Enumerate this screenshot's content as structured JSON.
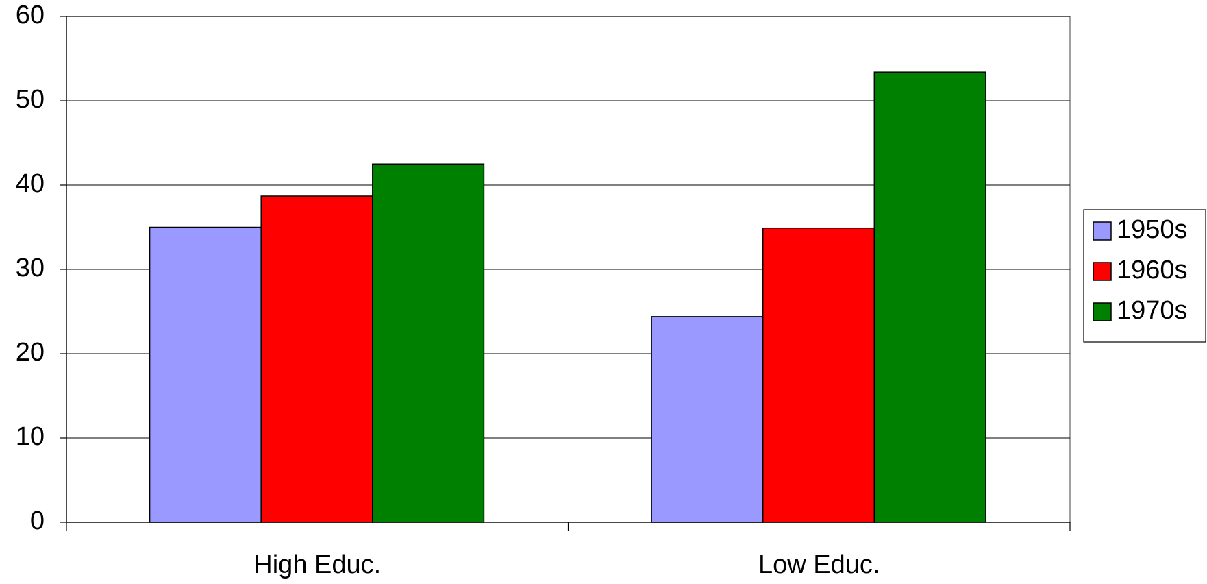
{
  "chart_data": {
    "type": "bar",
    "categories": [
      "High Educ.",
      "Low Educ."
    ],
    "series": [
      {
        "name": "1950s",
        "color": "#9999ff",
        "values": [
          35,
          24.4
        ]
      },
      {
        "name": "1960s",
        "color": "#ff0000",
        "values": [
          38.7,
          34.9
        ]
      },
      {
        "name": "1970s",
        "color": "#008000",
        "values": [
          42.5,
          53.4
        ]
      }
    ],
    "ylim": [
      0,
      60
    ],
    "yticks": [
      0,
      10,
      20,
      30,
      40,
      50,
      60
    ],
    "grid": true,
    "legend": "right"
  }
}
